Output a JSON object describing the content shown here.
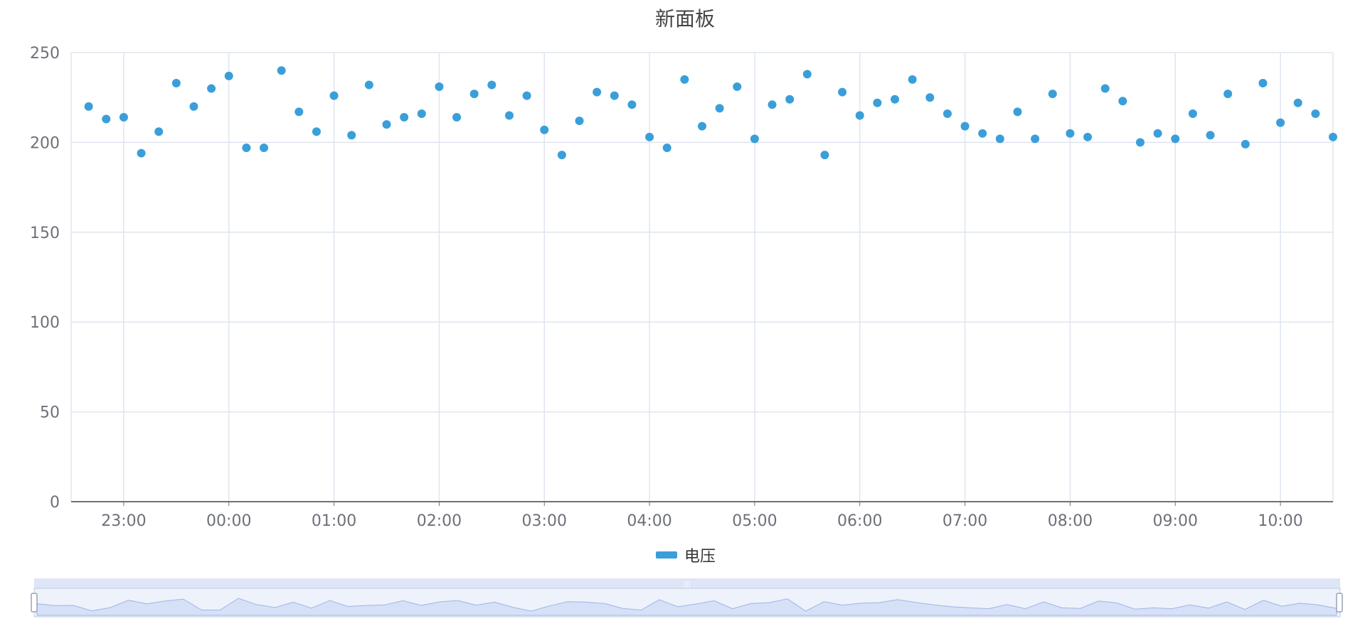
{
  "chart_data": {
    "type": "scatter",
    "title": "新面板",
    "xlabel": "",
    "ylabel": "",
    "ylim": [
      0,
      250
    ],
    "y_ticks": [
      0,
      50,
      100,
      150,
      200,
      250
    ],
    "x_ticks": [
      "23:00",
      "00:00",
      "01:00",
      "02:00",
      "03:00",
      "04:00",
      "05:00",
      "06:00",
      "07:00",
      "08:00",
      "09:00",
      "10:00"
    ],
    "x_range_hours_since_23": [
      -0.5,
      11.5
    ],
    "point_interval_minutes": 10,
    "grid": true,
    "legend_position": "bottom-center",
    "colors": {
      "series": "#3a9fd9",
      "grid": "#dfe5ef",
      "axis": "#6e7079",
      "slider_fill": "#d6e1f7",
      "slider_border": "#c3cce0",
      "slider_line": "#9fb5e6"
    },
    "series": [
      {
        "name": "电压",
        "values": [
          220,
          213,
          214,
          194,
          206,
          233,
          220,
          230,
          237,
          197,
          197,
          240,
          217,
          206,
          226,
          204,
          232,
          210,
          214,
          216,
          231,
          214,
          227,
          232,
          215,
          226,
          207,
          193,
          212,
          228,
          226,
          221,
          203,
          197,
          235,
          209,
          219,
          231,
          202,
          221,
          224,
          238,
          193,
          228,
          215,
          222,
          224,
          235,
          225,
          216,
          209,
          205,
          202,
          217,
          202,
          227,
          205,
          203,
          230,
          223,
          200,
          205,
          202,
          216,
          204,
          227,
          199,
          233,
          211,
          222,
          216,
          203
        ]
      }
    ]
  }
}
